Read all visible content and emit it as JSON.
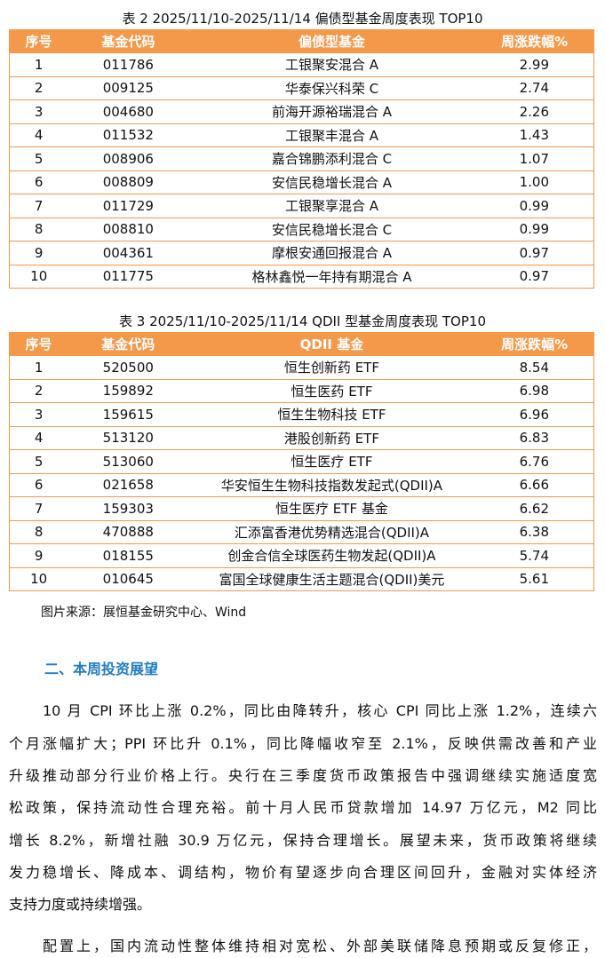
{
  "table2": {
    "caption": "表 2 2025/11/10-2025/11/14 偏债型基金周度表现 TOP10",
    "headers": [
      "序号",
      "基金代码",
      "偏债型基金",
      "周涨跌幅%"
    ],
    "rows": [
      [
        "1",
        "011786",
        "工银聚安混合 A",
        "2.99"
      ],
      [
        "2",
        "009125",
        "华泰保兴科荣 C",
        "2.74"
      ],
      [
        "3",
        "004680",
        "前海开源裕瑞混合 A",
        "2.26"
      ],
      [
        "4",
        "011532",
        "工银聚丰混合 A",
        "1.43"
      ],
      [
        "5",
        "008906",
        "嘉合锦鹏添利混合 C",
        "1.07"
      ],
      [
        "6",
        "008809",
        "安信民稳增长混合 A",
        "1.00"
      ],
      [
        "7",
        "011729",
        "工银聚享混合 A",
        "0.99"
      ],
      [
        "8",
        "008810",
        "安信民稳增长混合 C",
        "0.99"
      ],
      [
        "9",
        "004361",
        "摩根安通回报混合 A",
        "0.97"
      ],
      [
        "10",
        "011775",
        "格林鑫悦一年持有期混合 A",
        "0.97"
      ]
    ]
  },
  "table3": {
    "caption": "表 3 2025/11/10-2025/11/14 QDII 型基金周度表现 TOP10",
    "headers": [
      "序号",
      "基金代码",
      "QDII 基金",
      "周涨跌幅%"
    ],
    "rows": [
      [
        "1",
        "520500",
        "恒生创新药 ETF",
        "8.54"
      ],
      [
        "2",
        "159892",
        "恒生医药 ETF",
        "6.98"
      ],
      [
        "3",
        "159615",
        "恒生生物科技 ETF",
        "6.96"
      ],
      [
        "4",
        "513120",
        "港股创新药 ETF",
        "6.83"
      ],
      [
        "5",
        "513060",
        "恒生医疗 ETF",
        "6.76"
      ],
      [
        "6",
        "021658",
        "华安恒生生物科技指数发起式(QDII)A",
        "6.66"
      ],
      [
        "7",
        "159303",
        "恒生医疗 ETF 基金",
        "6.62"
      ],
      [
        "8",
        "470888",
        "汇添富香港优势精选混合(QDII)A",
        "6.38"
      ],
      [
        "9",
        "018155",
        "创金合信全球医药生物发起(QDII)A",
        "5.74"
      ],
      [
        "10",
        "010645",
        "富国全球健康生活主题混合(QDII)美元",
        "5.61"
      ]
    ]
  },
  "source": "图片来源：展恒基金研究中心、Wind",
  "section_title": "二、本周投资展望",
  "body_lines": [
    "10 月 CPI 环比上涨 0.2%，同比由降转升，核心 CPI 同比上涨 1.2%，连续六",
    "个月涨幅扩大；PPI 环比升 0.1%，同比降幅收窄至 2.1%，反映供需改善和产业",
    "升级推动部分行业价格上行。央行在三季度货币政策报告中强调继续实施适度宽",
    "松政策，保持流动性合理充裕。前十月人民币贷款增加 14.97 万亿元，M2 同比",
    "增长 8.2%，新增社融 30.9 万亿元，保持合理增长。展望未来，货币政策将继续",
    "发力稳增长、降成本、调结构，物价有望逐步向合理区间回升，金融对实体经济",
    "支持力度或持续增强。",
    "配置上，国内流动性整体维持相对宽松、外部美联储降息预期或反复修正，"
  ],
  "colors": {
    "header_bg": "#F4984A",
    "section_title": "#1F7CC4"
  }
}
